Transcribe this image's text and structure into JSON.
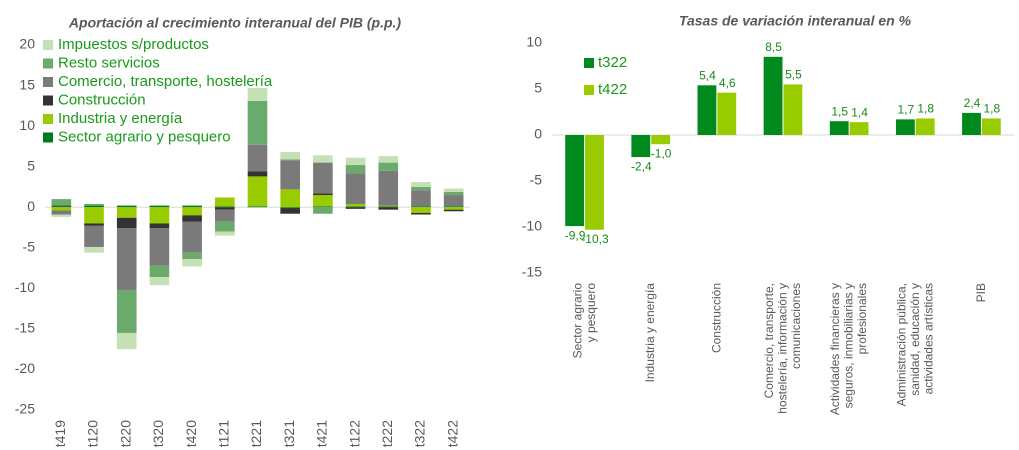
{
  "chart_data": [
    {
      "type": "stacked_bar",
      "title": "Aportación al crecimiento interanual del PIB (p.p.)",
      "categories": [
        "t419",
        "t120",
        "t220",
        "t320",
        "t420",
        "t121",
        "t221",
        "t321",
        "t421",
        "t122",
        "t222",
        "t322",
        "t422"
      ],
      "series": [
        {
          "name": "Sector agrario y pesquero",
          "color": "#007a1e",
          "values": [
            0.1,
            0.2,
            0.2,
            0.2,
            0.2,
            0.1,
            0.1,
            -0.1,
            0.1,
            0.1,
            0.1,
            0.1,
            0.1
          ]
        },
        {
          "name": "Industria y energía",
          "color": "#99cc00",
          "values": [
            -0.4,
            -2.0,
            -1.3,
            -2.0,
            -1.0,
            1.1,
            3.7,
            2.2,
            1.4,
            0.3,
            0.1,
            -0.7,
            -0.3
          ]
        },
        {
          "name": "Construcción",
          "color": "#333333",
          "values": [
            0.1,
            -0.3,
            -1.3,
            -0.6,
            -0.8,
            -0.3,
            0.6,
            -0.7,
            0.2,
            -0.2,
            -0.3,
            -0.2,
            -0.2
          ]
        },
        {
          "name": "Comercio, transporte, hostelería",
          "color": "#7a7a7a",
          "values": [
            -0.5,
            -2.6,
            -7.6,
            -4.6,
            -3.8,
            -1.5,
            3.3,
            3.6,
            3.8,
            3.8,
            4.3,
            2.0,
            1.4
          ]
        },
        {
          "name": "Resto servicios",
          "color": "#6aaa6a",
          "values": [
            0.8,
            0.2,
            -5.3,
            -1.4,
            -0.8,
            -1.2,
            5.4,
            0.1,
            -0.8,
            1.0,
            1.0,
            0.4,
            0.4
          ]
        },
        {
          "name": "Impuestos s/productos",
          "color": "#c5e0b4",
          "values": [
            -0.3,
            -0.7,
            -2.0,
            -1.0,
            -0.9,
            -0.5,
            1.6,
            0.9,
            0.9,
            0.9,
            0.8,
            0.6,
            0.4
          ]
        }
      ],
      "ylim": [
        -25,
        20
      ],
      "yticks": [
        -25,
        -20,
        -15,
        -10,
        -5,
        0,
        5,
        10,
        15,
        20
      ]
    },
    {
      "type": "bar",
      "title": "Tasas de variación interanual en %",
      "categories": [
        "Sector agrario\ny pesquero",
        "Industria y energía",
        "Construcción",
        "Comercio, transporte,\nhostelería, información y\ncomunicaciones",
        "Actividades financieras y\nseguros, inmobiliarias y\nprofesionales",
        "Administración pública,\nsanidad, educación y\nactividades artísticas",
        "PIB"
      ],
      "series": [
        {
          "name": "t322",
          "color": "#008a1e",
          "values": [
            -9.9,
            -2.4,
            5.4,
            8.5,
            1.5,
            1.7,
            2.4
          ],
          "value_labels": [
            "-9,9",
            "-2,4",
            "5,4",
            "8,5",
            "1,5",
            "1,7",
            "2,4"
          ]
        },
        {
          "name": "t422",
          "color": "#99cc00",
          "values": [
            -10.3,
            -1.0,
            4.6,
            5.5,
            1.4,
            1.8,
            1.8
          ],
          "value_labels": [
            "-10,3",
            "-1,0",
            "4,6",
            "5,5",
            "1,4",
            "1,8",
            "1,8"
          ]
        }
      ],
      "ylim": [
        -15,
        10
      ],
      "yticks": [
        -15,
        -10,
        -5,
        0,
        5,
        10
      ]
    }
  ]
}
